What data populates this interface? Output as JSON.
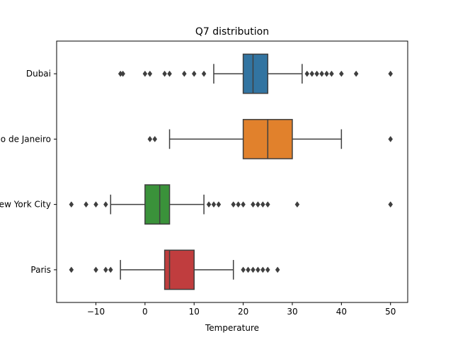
{
  "chart_data": {
    "type": "boxplot",
    "orientation": "horizontal",
    "title": "Q7 distribution",
    "xlabel": "Temperature",
    "ylabel": "",
    "xlim": [
      -18,
      53.5
    ],
    "x_ticks": [
      -10,
      0,
      10,
      20,
      30,
      40,
      50
    ],
    "x_tick_labels": [
      "−10",
      "0",
      "10",
      "20",
      "30",
      "40",
      "50"
    ],
    "grid": false,
    "categories": [
      "Dubai",
      "Rio de Janeiro",
      "New York City",
      "Paris"
    ],
    "colors": [
      "#3274a1",
      "#e1812c",
      "#3a923a",
      "#c03d3e"
    ],
    "boxes": [
      {
        "category": "Dubai",
        "whisker_low": 14,
        "q1": 20,
        "median": 22,
        "q3": 25,
        "whisker_high": 32,
        "outliers": [
          -5,
          -4.5,
          0,
          1,
          4,
          5,
          8,
          10,
          12,
          33,
          34,
          35,
          36,
          37,
          38,
          40,
          43,
          50
        ]
      },
      {
        "category": "Rio de Janeiro",
        "whisker_low": 5,
        "q1": 20,
        "median": 25,
        "q3": 30,
        "whisker_high": 40,
        "outliers": [
          1,
          2,
          50
        ]
      },
      {
        "category": "New York City",
        "whisker_low": -7,
        "q1": 0,
        "median": 3,
        "q3": 5,
        "whisker_high": 12,
        "outliers": [
          -15,
          -12,
          -10,
          -8,
          13,
          14,
          15,
          18,
          19,
          20,
          22,
          23,
          24,
          25,
          31,
          50
        ]
      },
      {
        "category": "Paris",
        "whisker_low": -5,
        "q1": 4,
        "median": 5,
        "q3": 10,
        "whisker_high": 18,
        "outliers": [
          -15,
          -10,
          -8,
          -7,
          20,
          21,
          22,
          23,
          24,
          25,
          27
        ]
      }
    ]
  }
}
